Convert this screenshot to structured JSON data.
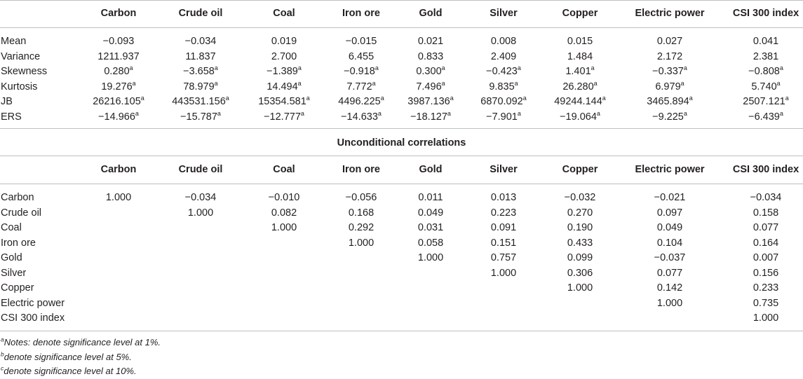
{
  "columns": [
    "Carbon",
    "Crude oil",
    "Coal",
    "Iron ore",
    "Gold",
    "Silver",
    "Copper",
    "Electric power",
    "CSI 300 index"
  ],
  "stats": [
    {
      "label": "Mean",
      "values": [
        "−0.093",
        "−0.034",
        "0.019",
        "−0.015",
        "0.021",
        "0.008",
        "0.015",
        "0.027",
        "0.041"
      ],
      "sups": [
        "",
        "",
        "",
        "",
        "",
        "",
        "",
        "",
        ""
      ]
    },
    {
      "label": "Variance",
      "values": [
        "1211.937",
        "11.837",
        "2.700",
        "6.455",
        "0.833",
        "2.409",
        "1.484",
        "2.172",
        "2.381"
      ],
      "sups": [
        "",
        "",
        "",
        "",
        "",
        "",
        "",
        "",
        ""
      ]
    },
    {
      "label": "Skewness",
      "values": [
        "0.280",
        "−3.658",
        "−1.389",
        "−0.918",
        "0.300",
        "−0.423",
        "1.401",
        "−0.337",
        "−0.808"
      ],
      "sups": [
        "a",
        "a",
        "a",
        "a",
        "a",
        "a",
        "a",
        "a",
        "a"
      ]
    },
    {
      "label": "Kurtosis",
      "values": [
        "19.276",
        "78.979",
        "14.494",
        "7.772",
        "7.496",
        "9.835",
        "26.280",
        "6.979",
        "5.740"
      ],
      "sups": [
        "a",
        "a",
        "a",
        "a",
        "a",
        "a",
        "a",
        "a",
        "a"
      ]
    },
    {
      "label": "JB",
      "values": [
        "26216.105",
        "443531.156",
        "15354.581",
        "4496.225",
        "3987.136",
        "6870.092",
        "49244.144",
        "3465.894",
        "2507.121"
      ],
      "sups": [
        "a",
        "a",
        "a",
        "a",
        "a",
        "a",
        "a",
        "a",
        "a"
      ]
    },
    {
      "label": "ERS",
      "values": [
        "−14.966",
        "−15.787",
        "−12.777",
        "−14.633",
        "−18.127",
        "−7.901",
        "−19.064",
        "−9.225",
        "−6.439"
      ],
      "sups": [
        "a",
        "a",
        "a",
        "a",
        "a",
        "a",
        "a",
        "a",
        "a"
      ]
    }
  ],
  "subtitle": "Unconditional correlations",
  "correlations": [
    {
      "label": "Carbon",
      "values": [
        "1.000",
        "−0.034",
        "−0.010",
        "−0.056",
        "0.011",
        "0.013",
        "−0.032",
        "−0.021",
        "−0.034"
      ]
    },
    {
      "label": "Crude oil",
      "values": [
        "",
        "1.000",
        "0.082",
        "0.168",
        "0.049",
        "0.223",
        "0.270",
        "0.097",
        "0.158"
      ]
    },
    {
      "label": "Coal",
      "values": [
        "",
        "",
        "1.000",
        "0.292",
        "0.031",
        "0.091",
        "0.190",
        "0.049",
        "0.077"
      ]
    },
    {
      "label": "Iron ore",
      "values": [
        "",
        "",
        "",
        "1.000",
        "0.058",
        "0.151",
        "0.433",
        "0.104",
        "0.164"
      ]
    },
    {
      "label": "Gold",
      "values": [
        "",
        "",
        "",
        "",
        "1.000",
        "0.757",
        "0.099",
        "−0.037",
        "0.007"
      ]
    },
    {
      "label": "Silver",
      "values": [
        "",
        "",
        "",
        "",
        "",
        "1.000",
        "0.306",
        "0.077",
        "0.156"
      ]
    },
    {
      "label": "Copper",
      "values": [
        "",
        "",
        "",
        "",
        "",
        "",
        "1.000",
        "0.142",
        "0.233"
      ]
    },
    {
      "label": "Electric power",
      "values": [
        "",
        "",
        "",
        "",
        "",
        "",
        "",
        "1.000",
        "0.735"
      ]
    },
    {
      "label": "CSI 300 index",
      "values": [
        "",
        "",
        "",
        "",
        "",
        "",
        "",
        "",
        "1.000"
      ]
    }
  ],
  "notes": [
    {
      "sup": "a",
      "text": "Notes: denote significance level at 1%."
    },
    {
      "sup": "b",
      "text": "denote significance level at 5%."
    },
    {
      "sup": "c",
      "text": "denote significance level at 10%."
    }
  ]
}
